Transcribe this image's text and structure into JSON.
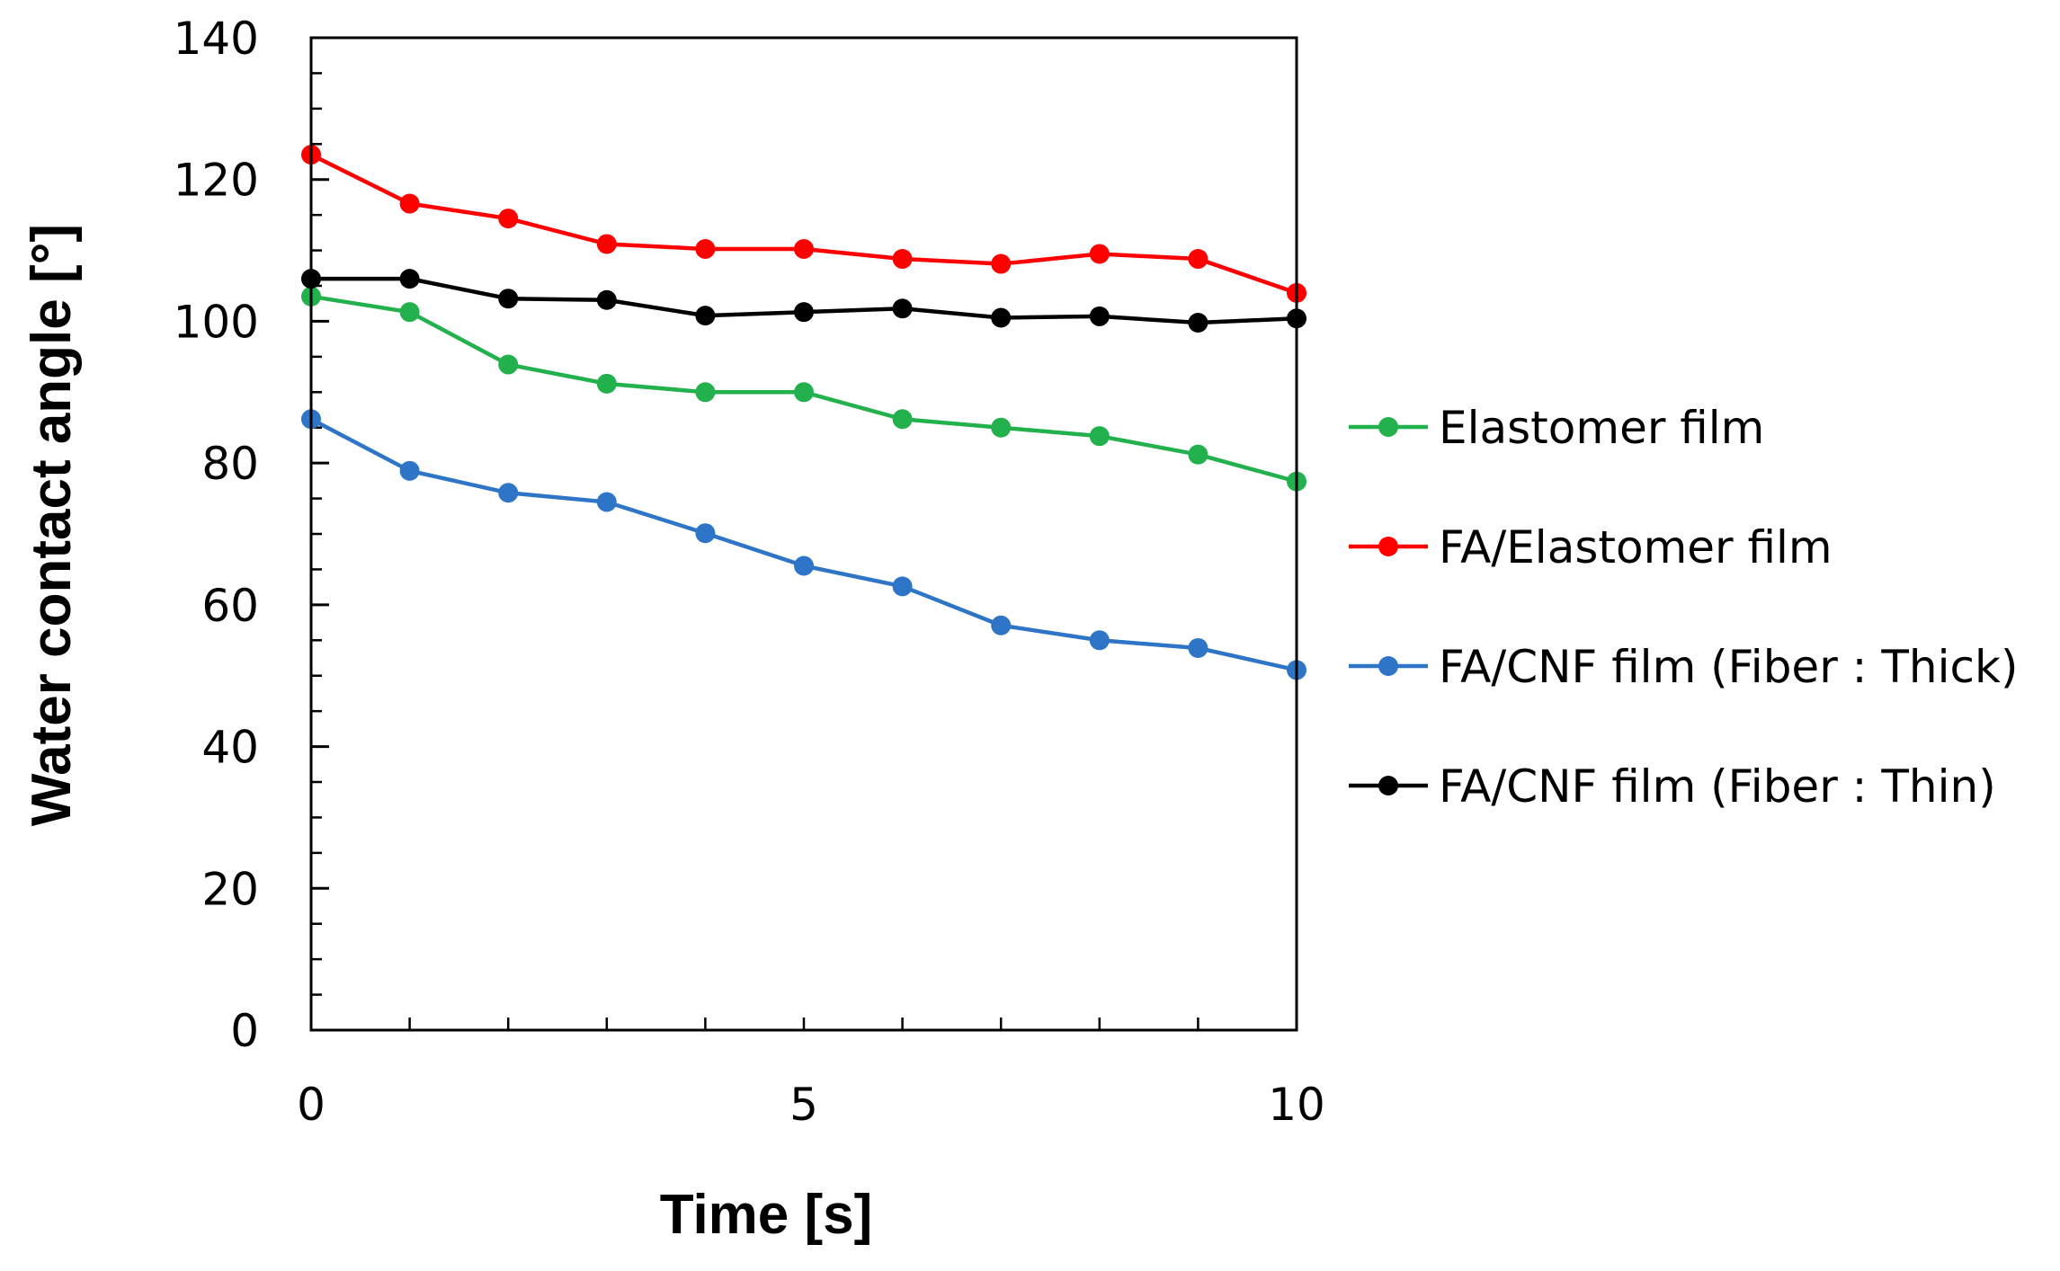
{
  "chart_data": {
    "type": "line",
    "title": "",
    "xlabel": "Time [s]",
    "ylabel": "Water contact angle [°]",
    "xlim": [
      0,
      10
    ],
    "ylim": [
      0,
      140
    ],
    "xticks": [
      0,
      5,
      10
    ],
    "yticks": [
      0,
      20,
      40,
      60,
      80,
      100,
      120,
      140
    ],
    "yminor_step": 5,
    "xminor_step": 1,
    "grid": false,
    "legend_position": "right",
    "x": [
      0,
      1,
      2,
      3,
      4,
      5,
      6,
      7,
      8,
      9,
      10
    ],
    "series": [
      {
        "name": "Elastomer film",
        "color": "#22b14c",
        "values": [
          103.5,
          101.3,
          93.9,
          91.2,
          90.0,
          90.0,
          86.2,
          85.0,
          83.8,
          81.2,
          77.4
        ]
      },
      {
        "name": "FA/Elastomer film",
        "color": "#ff0000",
        "values": [
          123.5,
          116.6,
          114.5,
          110.9,
          110.2,
          110.2,
          108.8,
          108.1,
          109.5,
          108.8,
          104.0
        ]
      },
      {
        "name": "FA/CNF film (Fiber : Thick)",
        "color": "#2e75c8",
        "values": [
          86.2,
          78.9,
          75.8,
          74.5,
          70.1,
          65.5,
          62.6,
          57.1,
          55.0,
          53.9,
          50.8
        ]
      },
      {
        "name": "FA/CNF film (Fiber : Thin)",
        "color": "#000000",
        "values": [
          106.0,
          106.0,
          103.2,
          103.0,
          100.8,
          101.3,
          101.8,
          100.5,
          100.7,
          99.8,
          100.4
        ]
      }
    ]
  }
}
